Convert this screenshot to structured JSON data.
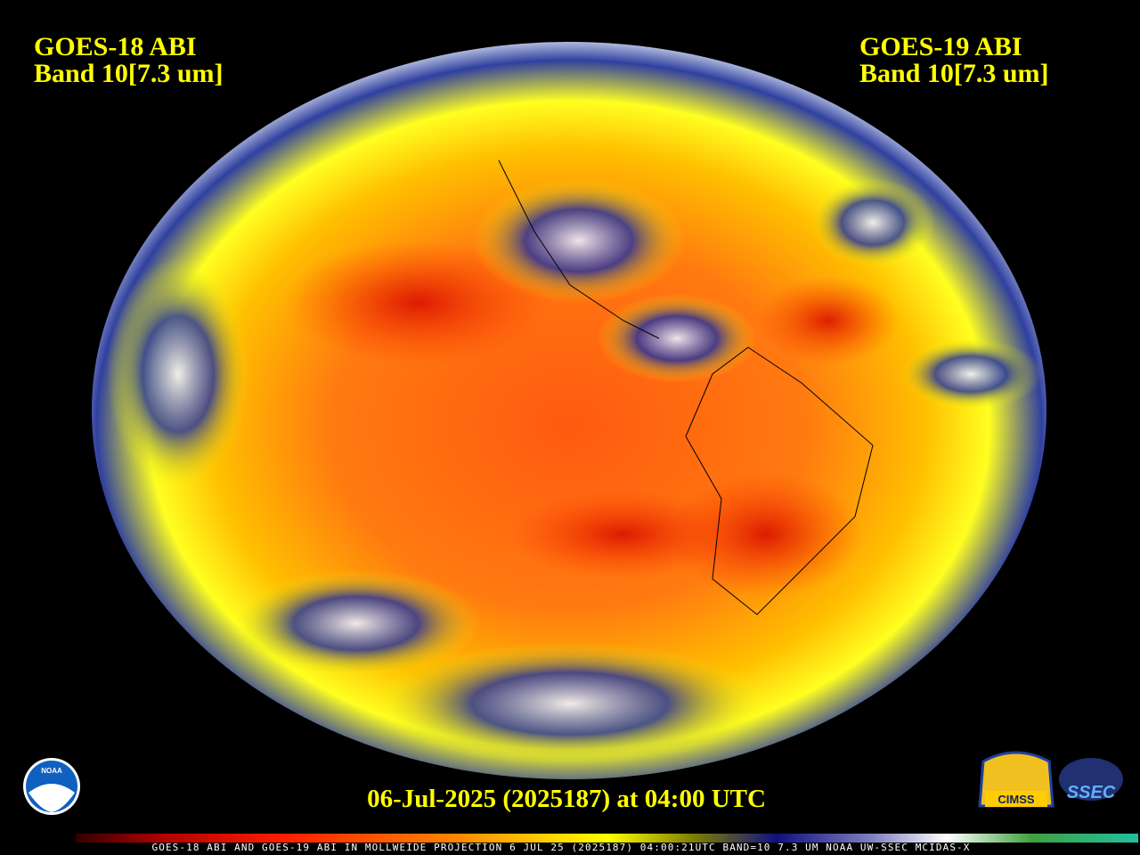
{
  "left_label": {
    "satellite": "GOES-18 ABI",
    "band": "Band 10[7.3 um]"
  },
  "right_label": {
    "satellite": "GOES-19 ABI",
    "band": "Band 10[7.3 um]"
  },
  "timestamp": "06-Jul-2025 (2025187) at 04:00 UTC",
  "footer": "GOES-18 ABI AND GOES-19 ABI IN MOLLWEIDE PROJECTION 6 JUL 25 (2025187) 04:00:21UTC BAND=10 7.3 UM NOAA UW-SSEC MCIDAS-X",
  "logos": {
    "noaa": "NOAA",
    "cimss": "CIMSS",
    "ssec": "SSEC"
  }
}
